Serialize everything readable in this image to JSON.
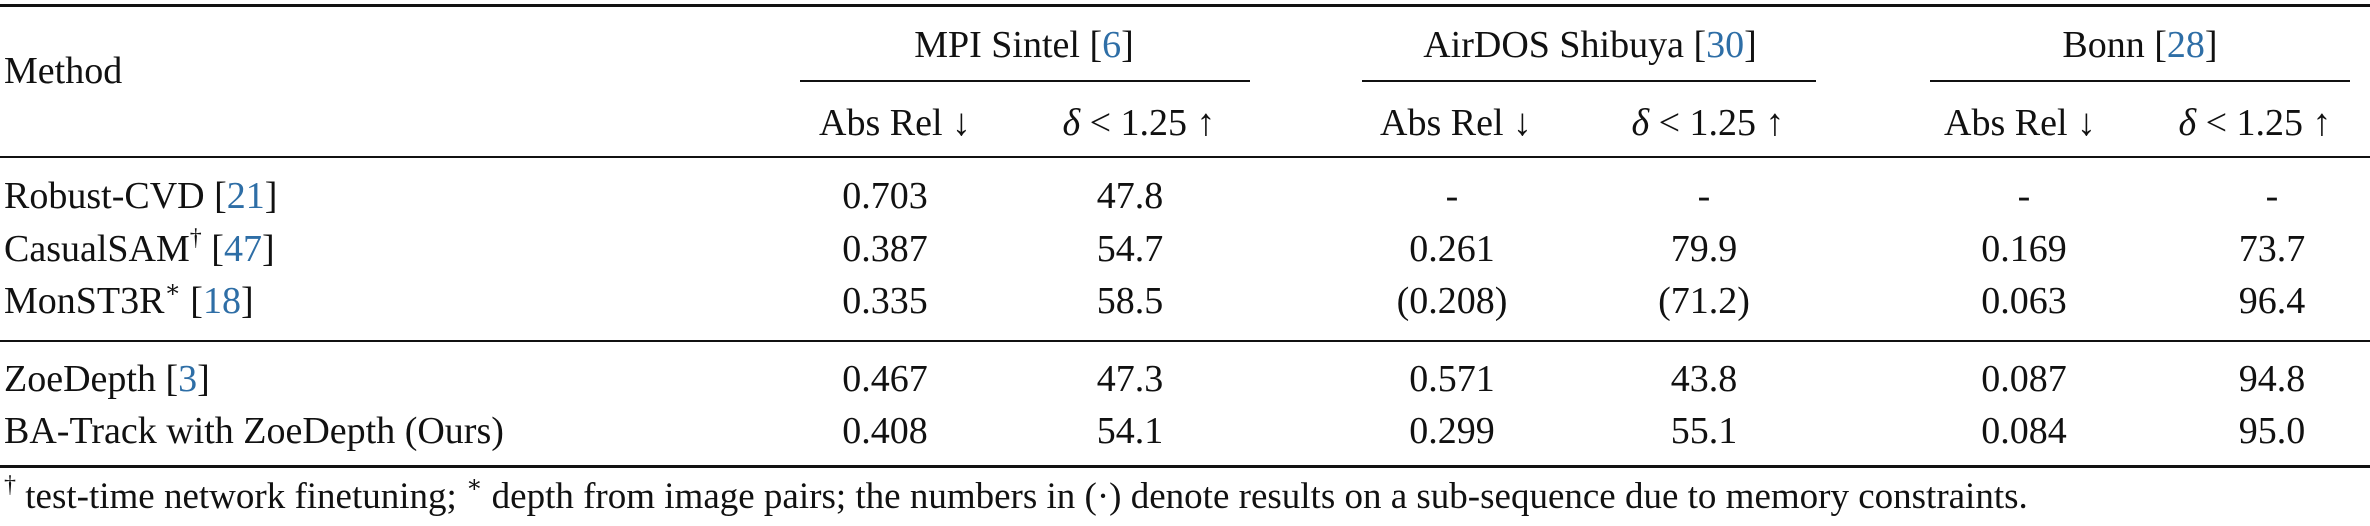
{
  "header": {
    "method": "Method",
    "groups": [
      {
        "name": "MPI Sintel",
        "ref": "6"
      },
      {
        "name": "AirDOS Shibuya",
        "ref": "30"
      },
      {
        "name": "Bonn",
        "ref": "28"
      }
    ],
    "metric_absrel": "Abs Rel ↓",
    "metric_delta_sym": "δ",
    "metric_delta_rest": "< 1.25 ↑"
  },
  "rows": [
    {
      "name": "Robust-CVD",
      "mark": "",
      "ref": "21",
      "values": [
        "0.703",
        "47.8",
        "-",
        "-",
        "-",
        "-"
      ]
    },
    {
      "name": "CasualSAM",
      "mark": "†",
      "ref": "47",
      "values": [
        "0.387",
        "54.7",
        "0.261",
        "79.9",
        "0.169",
        "73.7"
      ]
    },
    {
      "name": "MonST3R",
      "mark": "∗",
      "ref": "18",
      "values": [
        "0.335",
        "58.5",
        "(0.208)",
        "(71.2)",
        "0.063",
        "96.4"
      ]
    },
    {
      "name": "ZoeDepth",
      "mark": "",
      "ref": "3",
      "values": [
        "0.467",
        "47.3",
        "0.571",
        "43.8",
        "0.087",
        "94.8"
      ]
    },
    {
      "name": "BA-Track with ZoeDepth (Ours)",
      "mark": "",
      "ref": "",
      "values": [
        "0.408",
        "54.1",
        "0.299",
        "55.1",
        "0.084",
        "95.0"
      ]
    }
  ],
  "footnote": {
    "dagger": "†",
    "dagger_text": " test-time network finetuning; ",
    "star": "∗",
    "star_text": " depth from image pairs; the numbers in ",
    "dot": "(·)",
    "end_text": " denote results on a sub-sequence due to memory constraints."
  }
}
